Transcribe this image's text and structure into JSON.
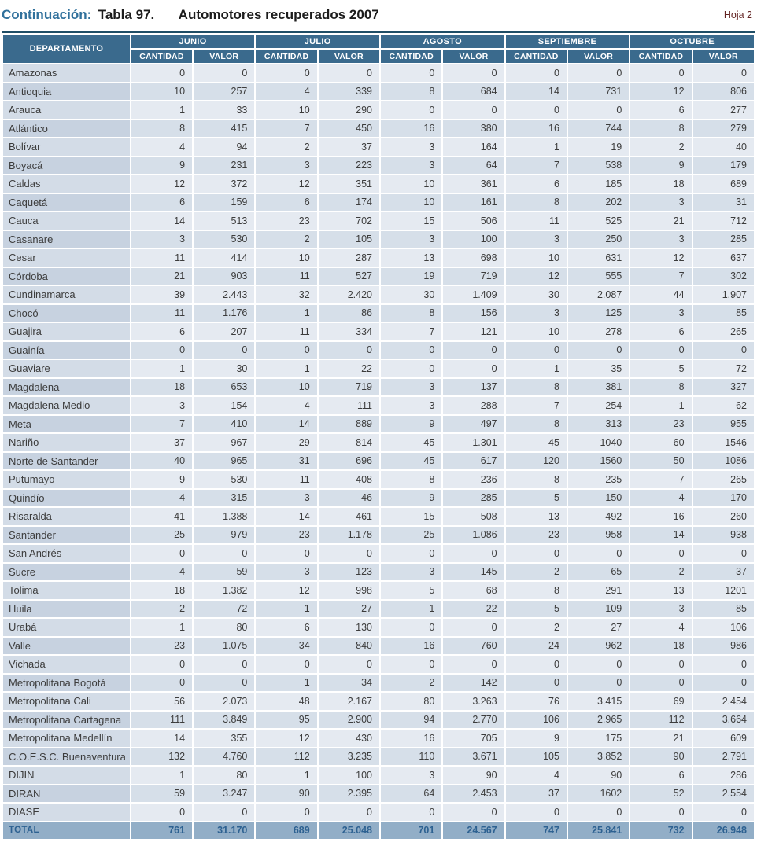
{
  "page": {
    "title_prefix": "Continuación:",
    "title_table_number": "Tabla 97.",
    "title_main": "Automotores recuperados 2007",
    "sheet_label": "Hoja 2"
  },
  "colors": {
    "header_bg": "#3a6a8d",
    "top_border": "#1f4e66",
    "row_odd_dept": "#d3dce7",
    "row_odd_data": "#e5eaf1",
    "row_even_dept": "#c7d2e0",
    "row_even_data": "#d6dfe9",
    "total_bg": "#92aec7",
    "total_text": "#2d6191",
    "title_accent": "#31719c",
    "sheet_label_color": "#632423"
  },
  "table": {
    "department_header": "DEPARTAMENTO",
    "month_groups": [
      "JUNIO",
      "JULIO",
      "AGOSTO",
      "SEPTIEMBRE",
      "OCTUBRE"
    ],
    "sub_headers": [
      "CANTIDAD",
      "VALOR"
    ],
    "rows": [
      {
        "department": "Amazonas",
        "values": [
          "0",
          "0",
          "0",
          "0",
          "0",
          "0",
          "0",
          "0",
          "0",
          "0"
        ]
      },
      {
        "department": "Antioquia",
        "values": [
          "10",
          "257",
          "4",
          "339",
          "8",
          "684",
          "14",
          "731",
          "12",
          "806"
        ]
      },
      {
        "department": "Arauca",
        "values": [
          "1",
          "33",
          "10",
          "290",
          "0",
          "0",
          "0",
          "0",
          "6",
          "277"
        ]
      },
      {
        "department": "Atlántico",
        "values": [
          "8",
          "415",
          "7",
          "450",
          "16",
          "380",
          "16",
          "744",
          "8",
          "279"
        ]
      },
      {
        "department": "Bolívar",
        "values": [
          "4",
          "94",
          "2",
          "37",
          "3",
          "164",
          "1",
          "19",
          "2",
          "40"
        ]
      },
      {
        "department": "Boyacá",
        "values": [
          "9",
          "231",
          "3",
          "223",
          "3",
          "64",
          "7",
          "538",
          "9",
          "179"
        ]
      },
      {
        "department": "Caldas",
        "values": [
          "12",
          "372",
          "12",
          "351",
          "10",
          "361",
          "6",
          "185",
          "18",
          "689"
        ]
      },
      {
        "department": "Caquetá",
        "values": [
          "6",
          "159",
          "6",
          "174",
          "10",
          "161",
          "8",
          "202",
          "3",
          "31"
        ]
      },
      {
        "department": "Cauca",
        "values": [
          "14",
          "513",
          "23",
          "702",
          "15",
          "506",
          "11",
          "525",
          "21",
          "712"
        ]
      },
      {
        "department": "Casanare",
        "values": [
          "3",
          "530",
          "2",
          "105",
          "3",
          "100",
          "3",
          "250",
          "3",
          "285"
        ]
      },
      {
        "department": "Cesar",
        "values": [
          "11",
          "414",
          "10",
          "287",
          "13",
          "698",
          "10",
          "631",
          "12",
          "637"
        ]
      },
      {
        "department": "Córdoba",
        "values": [
          "21",
          "903",
          "11",
          "527",
          "19",
          "719",
          "12",
          "555",
          "7",
          "302"
        ]
      },
      {
        "department": "Cundinamarca",
        "values": [
          "39",
          "2.443",
          "32",
          "2.420",
          "30",
          "1.409",
          "30",
          "2.087",
          "44",
          "1.907"
        ]
      },
      {
        "department": "Chocó",
        "values": [
          "11",
          "1.176",
          "1",
          "86",
          "8",
          "156",
          "3",
          "125",
          "3",
          "85"
        ]
      },
      {
        "department": "Guajira",
        "values": [
          "6",
          "207",
          "11",
          "334",
          "7",
          "121",
          "10",
          "278",
          "6",
          "265"
        ]
      },
      {
        "department": "Guainía",
        "values": [
          "0",
          "0",
          "0",
          "0",
          "0",
          "0",
          "0",
          "0",
          "0",
          "0"
        ]
      },
      {
        "department": "Guaviare",
        "values": [
          "1",
          "30",
          "1",
          "22",
          "0",
          "0",
          "1",
          "35",
          "5",
          "72"
        ]
      },
      {
        "department": "Magdalena",
        "values": [
          "18",
          "653",
          "10",
          "719",
          "3",
          "137",
          "8",
          "381",
          "8",
          "327"
        ]
      },
      {
        "department": "Magdalena Medio",
        "values": [
          "3",
          "154",
          "4",
          "111",
          "3",
          "288",
          "7",
          "254",
          "1",
          "62"
        ]
      },
      {
        "department": "Meta",
        "values": [
          "7",
          "410",
          "14",
          "889",
          "9",
          "497",
          "8",
          "313",
          "23",
          "955"
        ]
      },
      {
        "department": "Nariño",
        "values": [
          "37",
          "967",
          "29",
          "814",
          "45",
          "1.301",
          "45",
          "1040",
          "60",
          "1546"
        ]
      },
      {
        "department": "Norte de Santander",
        "values": [
          "40",
          "965",
          "31",
          "696",
          "45",
          "617",
          "120",
          "1560",
          "50",
          "1086"
        ]
      },
      {
        "department": "Putumayo",
        "values": [
          "9",
          "530",
          "11",
          "408",
          "8",
          "236",
          "8",
          "235",
          "7",
          "265"
        ]
      },
      {
        "department": "Quindío",
        "values": [
          "4",
          "315",
          "3",
          "46",
          "9",
          "285",
          "5",
          "150",
          "4",
          "170"
        ]
      },
      {
        "department": "Risaralda",
        "values": [
          "41",
          "1.388",
          "14",
          "461",
          "15",
          "508",
          "13",
          "492",
          "16",
          "260"
        ]
      },
      {
        "department": "Santander",
        "values": [
          "25",
          "979",
          "23",
          "1.178",
          "25",
          "1.086",
          "23",
          "958",
          "14",
          "938"
        ]
      },
      {
        "department": "San Andrés",
        "values": [
          "0",
          "0",
          "0",
          "0",
          "0",
          "0",
          "0",
          "0",
          "0",
          "0"
        ]
      },
      {
        "department": "Sucre",
        "values": [
          "4",
          "59",
          "3",
          "123",
          "3",
          "145",
          "2",
          "65",
          "2",
          "37"
        ]
      },
      {
        "department": "Tolima",
        "values": [
          "18",
          "1.382",
          "12",
          "998",
          "5",
          "68",
          "8",
          "291",
          "13",
          "1201"
        ]
      },
      {
        "department": "Huila",
        "values": [
          "2",
          "72",
          "1",
          "27",
          "1",
          "22",
          "5",
          "109",
          "3",
          "85"
        ]
      },
      {
        "department": "Urabá",
        "values": [
          "1",
          "80",
          "6",
          "130",
          "0",
          "0",
          "2",
          "27",
          "4",
          "106"
        ]
      },
      {
        "department": "Valle",
        "values": [
          "23",
          "1.075",
          "34",
          "840",
          "16",
          "760",
          "24",
          "962",
          "18",
          "986"
        ]
      },
      {
        "department": "Vichada",
        "values": [
          "0",
          "0",
          "0",
          "0",
          "0",
          "0",
          "0",
          "0",
          "0",
          "0"
        ]
      },
      {
        "department": "Metropolitana Bogotá",
        "values": [
          "0",
          "0",
          "1",
          "34",
          "2",
          "142",
          "0",
          "0",
          "0",
          "0"
        ]
      },
      {
        "department": "Metropolitana Cali",
        "values": [
          "56",
          "2.073",
          "48",
          "2.167",
          "80",
          "3.263",
          "76",
          "3.415",
          "69",
          "2.454"
        ]
      },
      {
        "department": "Metropolitana Cartagena",
        "values": [
          "111",
          "3.849",
          "95",
          "2.900",
          "94",
          "2.770",
          "106",
          "2.965",
          "112",
          "3.664"
        ]
      },
      {
        "department": "Metropolitana Medellín",
        "values": [
          "14",
          "355",
          "12",
          "430",
          "16",
          "705",
          "9",
          "175",
          "21",
          "609"
        ]
      },
      {
        "department": "C.O.E.S.C. Buenaventura",
        "values": [
          "132",
          "4.760",
          "112",
          "3.235",
          "110",
          "3.671",
          "105",
          "3.852",
          "90",
          "2.791"
        ]
      },
      {
        "department": "DIJIN",
        "values": [
          "1",
          "80",
          "1",
          "100",
          "3",
          "90",
          "4",
          "90",
          "6",
          "286"
        ]
      },
      {
        "department": "DIRAN",
        "values": [
          "59",
          "3.247",
          "90",
          "2.395",
          "64",
          "2.453",
          "37",
          "1602",
          "52",
          "2.554"
        ]
      },
      {
        "department": "DIASE",
        "values": [
          "0",
          "0",
          "0",
          "0",
          "0",
          "0",
          "0",
          "0",
          "0",
          "0"
        ]
      }
    ],
    "total": {
      "department": "TOTAL",
      "values": [
        "761",
        "31.170",
        "689",
        "25.048",
        "701",
        "24.567",
        "747",
        "25.841",
        "732",
        "26.948"
      ]
    }
  }
}
